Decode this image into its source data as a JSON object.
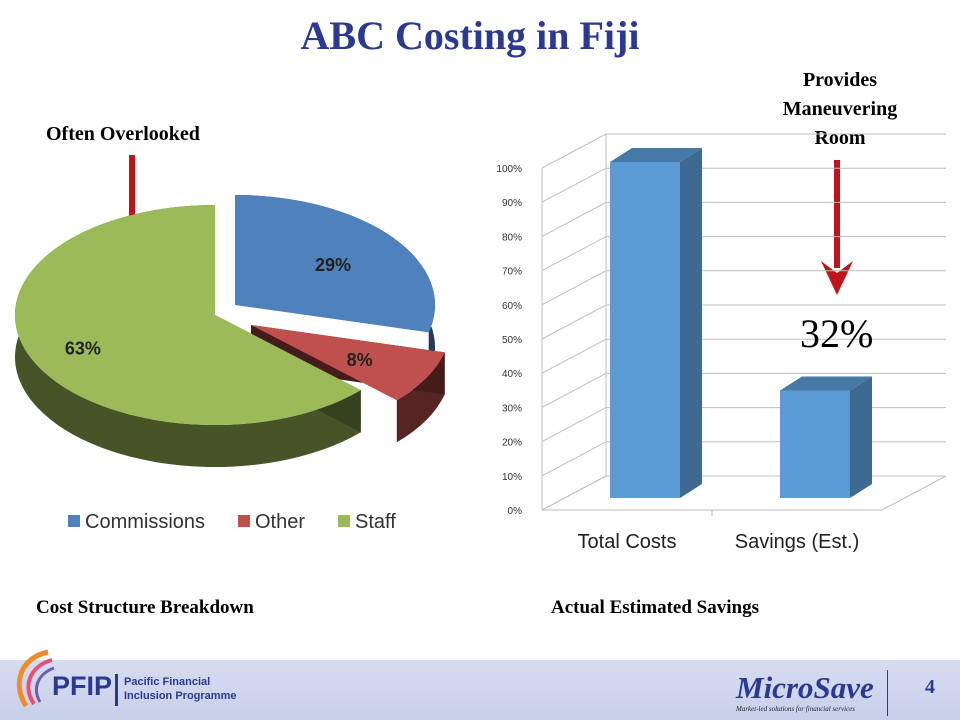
{
  "slide": {
    "title": "ABC Costing in Fiji",
    "page_number": "4",
    "labels": {
      "often_overlooked": "Often Overlooked",
      "provides_line1": "Provides",
      "provides_line2": "Maneuvering",
      "provides_line3": "Room",
      "savings_callout": "32%"
    },
    "captions": {
      "cost_structure": "Cost Structure Breakdown",
      "estimated_savings": "Actual Estimated Savings"
    },
    "footer": {
      "pfip_abbrev": "PFIP",
      "pfip_name_line1": "Pacific Financial",
      "pfip_name_line2": "Inclusion Programme",
      "microsave_brand": "MicroSave",
      "microsave_tagline": "Market-led solutions for financial services"
    },
    "colors": {
      "title": "#2b3990",
      "arrow": "#c0141b",
      "commissions": "#4f81bd",
      "other": "#c0504d",
      "staff": "#9bbb59",
      "bar": "#5b9bd5"
    }
  },
  "chart_data": [
    {
      "type": "pie",
      "title": "",
      "categories": [
        "Commissions",
        "Other",
        "Staff"
      ],
      "values": [
        29,
        8,
        63
      ],
      "data_labels": [
        "29%",
        "8%",
        "63%"
      ],
      "legend_position": "bottom",
      "three_d": true
    },
    {
      "type": "bar",
      "title": "",
      "categories": [
        "Total Costs",
        "Savings (Est.)"
      ],
      "values": [
        100,
        32
      ],
      "ylim": [
        0,
        100
      ],
      "yticks": [
        "0%",
        "10%",
        "20%",
        "30%",
        "40%",
        "50%",
        "60%",
        "70%",
        "80%",
        "90%",
        "100%"
      ],
      "grid": true,
      "three_d": true
    }
  ]
}
